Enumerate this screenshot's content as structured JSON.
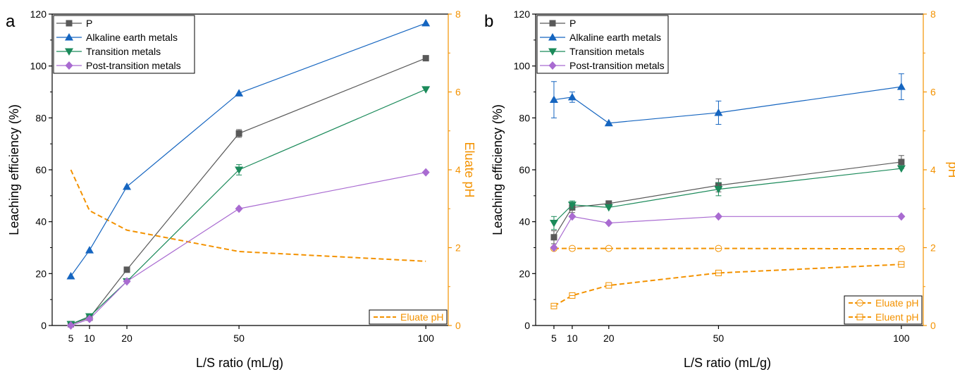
{
  "colors": {
    "P": "#595959",
    "alkaline": "#1565C0",
    "transition": "#1B8A5A",
    "post_transition": "#A96BD1",
    "ph": "#F39200",
    "axis": "#000000"
  },
  "chart_data": [
    {
      "panel_label": "a",
      "type": "line",
      "xlabel": "L/S ratio (mL/g)",
      "ylabel": "Leaching efficiency (%)",
      "y2label": "Eluate pH",
      "x_ticks": [
        5,
        10,
        20,
        50,
        100
      ],
      "xlim": [
        0,
        106
      ],
      "ylim": [
        0,
        120
      ],
      "y_ticks": [
        0,
        20,
        40,
        60,
        80,
        100,
        120
      ],
      "y2lim": [
        0,
        8
      ],
      "y2_ticks": [
        0,
        2,
        4,
        6,
        8
      ],
      "legend_position": "top-left",
      "legend2_position": "bottom-right",
      "series": [
        {
          "name": "P",
          "key": "P",
          "marker": "square",
          "x": [
            5,
            10,
            20,
            50,
            100
          ],
          "y": [
            0.5,
            3,
            21.5,
            74,
            103
          ],
          "err": [
            0,
            0,
            0,
            1.5,
            0
          ]
        },
        {
          "name": "Alkaline earth metals",
          "key": "alkaline",
          "marker": "triangle-up",
          "x": [
            5,
            10,
            20,
            50,
            100
          ],
          "y": [
            19,
            29,
            53.5,
            89.5,
            116.5
          ],
          "err": [
            0,
            0,
            0,
            0,
            0
          ]
        },
        {
          "name": "Transition metals",
          "key": "transition",
          "marker": "triangle-down",
          "x": [
            5,
            10,
            20,
            50,
            100
          ],
          "y": [
            0.5,
            3.5,
            17,
            60,
            91
          ],
          "err": [
            0,
            0,
            0,
            2,
            0
          ]
        },
        {
          "name": "Post-transition metals",
          "key": "post_transition",
          "marker": "diamond",
          "x": [
            5,
            10,
            20,
            50,
            100
          ],
          "y": [
            0,
            2.5,
            17,
            45,
            59
          ],
          "err": [
            0,
            0,
            0,
            0,
            0
          ]
        }
      ],
      "ph_series": [
        {
          "name": "Eluate pH",
          "marker": "none",
          "x": [
            5,
            10,
            20,
            50,
            100
          ],
          "y": [
            4.0,
            2.95,
            2.45,
            1.9,
            1.65
          ]
        }
      ]
    },
    {
      "panel_label": "b",
      "type": "line",
      "xlabel": "L/S ratio (mL/g)",
      "ylabel": "Leaching efficiency (%)",
      "y2label": "pH",
      "x_ticks": [
        5,
        10,
        20,
        50,
        100
      ],
      "xlim": [
        0,
        106
      ],
      "ylim": [
        0,
        120
      ],
      "y_ticks": [
        0,
        20,
        40,
        60,
        80,
        100,
        120
      ],
      "y2lim": [
        0,
        8
      ],
      "y2_ticks": [
        0,
        2,
        4,
        6,
        8
      ],
      "legend_position": "top-left",
      "legend2_position": "bottom-right",
      "series": [
        {
          "name": "P",
          "key": "P",
          "marker": "square",
          "x": [
            5,
            10,
            20,
            50,
            100
          ],
          "y": [
            34,
            45.5,
            47,
            54,
            63
          ],
          "err": [
            2.5,
            2,
            0,
            2.5,
            2.5
          ]
        },
        {
          "name": "Alkaline earth metals",
          "key": "alkaline",
          "marker": "triangle-up",
          "x": [
            5,
            10,
            20,
            50,
            100
          ],
          "y": [
            87,
            88,
            78,
            82,
            92
          ],
          "err": [
            7,
            2,
            0,
            4.5,
            5
          ]
        },
        {
          "name": "Transition metals",
          "key": "transition",
          "marker": "triangle-down",
          "x": [
            5,
            10,
            20,
            50,
            100
          ],
          "y": [
            39.5,
            46.5,
            45.5,
            52.5,
            60.5
          ],
          "err": [
            2.5,
            1.5,
            0,
            2.5,
            0
          ]
        },
        {
          "name": "Post-transition metals",
          "key": "post_transition",
          "marker": "diamond",
          "x": [
            5,
            10,
            20,
            50,
            100
          ],
          "y": [
            30,
            42,
            39.5,
            42,
            42
          ],
          "err": [
            0,
            0,
            0,
            0,
            0
          ]
        }
      ],
      "ph_series": [
        {
          "name": "Eluate pH",
          "marker": "circle-open",
          "x": [
            5,
            10,
            20,
            50,
            100
          ],
          "y": [
            1.98,
            1.98,
            1.98,
            1.98,
            1.97
          ]
        },
        {
          "name": "Eluent pH",
          "marker": "square-open",
          "x": [
            5,
            10,
            20,
            50,
            100
          ],
          "y": [
            0.5,
            0.77,
            1.03,
            1.35,
            1.57
          ]
        }
      ]
    }
  ]
}
